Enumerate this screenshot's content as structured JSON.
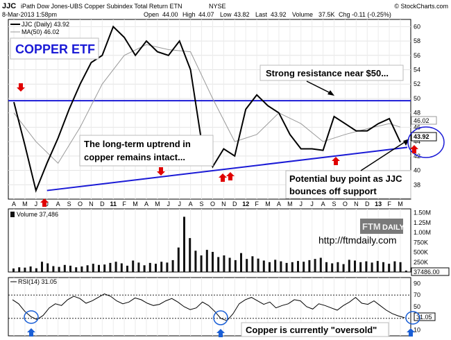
{
  "header": {
    "symbol": "JJC",
    "name": "iPath Dow Jones-UBS Copper Subindex Total Return ETN",
    "exchange": "NYSE",
    "brand": "© StockCharts.com",
    "date": "8-Mar-2013 1:58pm",
    "open_label": "Open",
    "open": "44.00",
    "high_label": "High",
    "high": "44.07",
    "low_label": "Low",
    "low": "43.82",
    "last_label": "Last",
    "last": "43.92",
    "volume_label": "Volume",
    "volume": "37.5K",
    "chg_label": "Chg",
    "chg": "-0.11 (-0.25%)"
  },
  "legend": {
    "price": "JJC (Daily) 43.92",
    "ma": "MA(50) 46.02",
    "volume": "Volume 37,486",
    "rsi": "RSI(14) 31.05"
  },
  "labels": {
    "title_box": "COPPER ETF",
    "resistance": "Strong resistance near $50...",
    "uptrend_1": "The long-term uptrend in",
    "uptrend_2": "copper remains intact...",
    "buy_1": "Potential buy point as JJC",
    "buy_2": "bounces off support",
    "oversold": "Copper is currently \"oversold\"",
    "logo_ftm": "FTM",
    "logo_daily": "DAILY",
    "url": "http://ftmdaily.com",
    "ma_value_tag": "46.02",
    "last_value_tag": "43.92",
    "vol_value_tag": "37486.00",
    "rsi_value_tag": "31.05"
  },
  "colors": {
    "price": "#000000",
    "ma": "#999999",
    "trendline": "#1a1ad6",
    "arrow_up": "#e00000",
    "arrow_rsi": "#1a5fd6",
    "volume": "#111111"
  },
  "chart_data": [
    {
      "type": "line",
      "panel": "price",
      "x_axis": {
        "ticks": [
          "A",
          "M",
          "J",
          "J",
          "A",
          "S",
          "O",
          "N",
          "D",
          "11",
          "F",
          "M",
          "A",
          "M",
          "J",
          "J",
          "A",
          "S",
          "O",
          "N",
          "D",
          "12",
          "F",
          "M",
          "A",
          "M",
          "J",
          "J",
          "A",
          "S",
          "O",
          "N",
          "D",
          "13",
          "F",
          "M"
        ],
        "range": [
          "2010-04",
          "2013-03"
        ]
      },
      "y_axis": {
        "ticks": [
          38,
          40,
          42,
          44,
          46,
          48,
          50,
          52,
          54,
          56,
          58,
          60
        ],
        "ylim": [
          36,
          61
        ]
      },
      "series": [
        {
          "name": "JJC (Daily) 43.92",
          "x": [
            "2010-04",
            "2010-05",
            "2010-06",
            "2010-07",
            "2010-08",
            "2010-09",
            "2010-10",
            "2010-11",
            "2010-12",
            "2011-01",
            "2011-02",
            "2011-03",
            "2011-04",
            "2011-05",
            "2011-06",
            "2011-07",
            "2011-08",
            "2011-09",
            "2011-10",
            "2011-11",
            "2011-12",
            "2012-01",
            "2012-02",
            "2012-03",
            "2012-04",
            "2012-05",
            "2012-06",
            "2012-07",
            "2012-08",
            "2012-09",
            "2012-10",
            "2012-11",
            "2012-12",
            "2013-01",
            "2013-02",
            "2013-03"
          ],
          "values": [
            49.5,
            43.5,
            37.2,
            41,
            44.5,
            48.5,
            52,
            55,
            56,
            60,
            58.5,
            56,
            58,
            56.5,
            56,
            58,
            54,
            44,
            40.5,
            43,
            42,
            48.5,
            50.5,
            49,
            48,
            45,
            43,
            43,
            42.8,
            47.5,
            46.5,
            45.5,
            45.5,
            46.5,
            47.2,
            43.92
          ]
        },
        {
          "name": "MA(50) 46.02",
          "x": [
            "2010-04",
            "2010-06",
            "2010-08",
            "2010-10",
            "2010-12",
            "2011-02",
            "2011-04",
            "2011-06",
            "2011-08",
            "2011-10",
            "2011-12",
            "2012-02",
            "2012-04",
            "2012-06",
            "2012-08",
            "2012-10",
            "2012-12",
            "2013-02",
            "2013-03"
          ],
          "values": [
            48,
            44,
            41,
            46,
            52,
            56,
            57.5,
            56.8,
            56.5,
            50,
            44,
            45,
            48,
            46.5,
            44,
            45,
            45.8,
            46.5,
            46.02
          ]
        }
      ],
      "horizontal_line": 49.7,
      "trendline": {
        "from": [
          "2010-07",
          37.2
        ],
        "to": [
          "2013-03",
          43.2
        ]
      }
    },
    {
      "type": "bar",
      "panel": "volume",
      "y_axis": {
        "ticks": [
          "250K",
          "500K",
          "750K",
          "1.00M",
          "1.25M",
          "1.50M"
        ],
        "ylim": [
          0,
          1600000
        ]
      },
      "values": [
        90000,
        120000,
        110000,
        140000,
        95000,
        260000,
        220000,
        150000,
        130000,
        180000,
        160000,
        120000,
        140000,
        170000,
        210000,
        180000,
        190000,
        230000,
        260000,
        220000,
        160000,
        290000,
        240000,
        170000,
        230000,
        210000,
        260000,
        240000,
        300000,
        620000,
        1400000,
        860000,
        540000,
        420000,
        560000,
        510000,
        380000,
        420000,
        360000,
        300000,
        480000,
        330000,
        400000,
        340000,
        290000,
        250000,
        310000,
        270000,
        230000,
        250000,
        280000,
        260000,
        300000,
        330000,
        360000,
        250000,
        220000,
        250000,
        200000,
        310000,
        290000,
        250000,
        270000,
        240000,
        280000,
        250000,
        210000,
        270000,
        250000,
        37486
      ]
    },
    {
      "type": "line",
      "panel": "rsi",
      "y_axis": {
        "ticks": [
          10,
          30,
          50,
          70,
          90
        ],
        "ylim": [
          0,
          100
        ]
      },
      "reference_lines": [
        30,
        70
      ],
      "values": [
        62,
        55,
        42,
        33,
        28,
        35,
        48,
        55,
        52,
        62,
        68,
        64,
        56,
        60,
        66,
        72,
        68,
        60,
        55,
        58,
        65,
        62,
        56,
        52,
        54,
        60,
        64,
        58,
        50,
        45,
        48,
        58,
        52,
        42,
        30,
        26,
        38,
        55,
        62,
        66,
        60,
        54,
        58,
        48,
        52,
        55,
        62,
        60,
        50,
        46,
        55,
        52,
        48,
        44,
        52,
        58,
        66,
        56,
        54,
        60,
        52,
        44,
        38,
        34,
        31.05
      ]
    }
  ]
}
